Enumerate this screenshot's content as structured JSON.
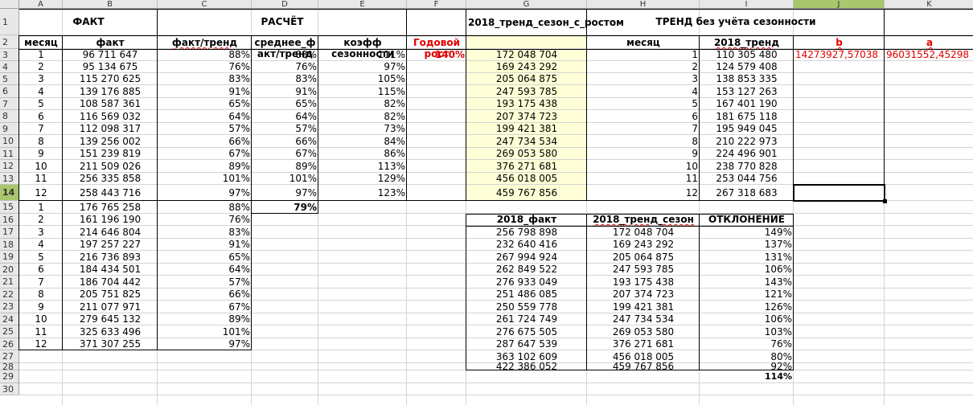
{
  "columns": [
    "A",
    "B",
    "C",
    "D",
    "E",
    "F",
    "G",
    "H",
    "I",
    "J",
    "K"
  ],
  "rows": [
    "1",
    "2",
    "3",
    "4",
    "5",
    "6",
    "7",
    "8",
    "9",
    "10",
    "11",
    "12",
    "13",
    "14",
    "15",
    "16",
    "17",
    "18",
    "19",
    "20",
    "21",
    "22",
    "23",
    "24",
    "25",
    "26",
    "27",
    "28",
    "29",
    "30"
  ],
  "headers": {
    "fact_group": "ФАКТ",
    "calc_group": "РАСЧЁТ",
    "trend_group": "ТРЕНД без учёта сезонности",
    "month": "месяц",
    "fact": "факт",
    "fact_trend": "факт/тренд",
    "avg_fact_trend": "среднее_факт/тренд",
    "season_coef": "коэфф сезонности",
    "annual_growth": "Годовой рост",
    "trend_season_growth": "2018_тренд_сезон_с_ростом",
    "month_h": "месяц",
    "trend_2018": "2018_тренд",
    "b_label": "b",
    "a_label": "a",
    "fact_2018": "2018_факт",
    "trend_season_2018": "2018_тренд_сезон",
    "deviation": "ОТКЛОНЕНИЕ"
  },
  "growth_value": "140%",
  "avg_total": "79%",
  "b_value": "14273927,57038",
  "a_value": "96031552,45298",
  "deviation_total": "114%",
  "fact_rows": [
    {
      "month": "1",
      "fact": "96 711 647",
      "ft": "88%"
    },
    {
      "month": "2",
      "fact": "95 134 675",
      "ft": "76%"
    },
    {
      "month": "3",
      "fact": "115 270 625",
      "ft": "83%"
    },
    {
      "month": "4",
      "fact": "139 176 885",
      "ft": "91%"
    },
    {
      "month": "5",
      "fact": "108 587 361",
      "ft": "65%"
    },
    {
      "month": "6",
      "fact": "116 569 032",
      "ft": "64%"
    },
    {
      "month": "7",
      "fact": "112 098 317",
      "ft": "57%"
    },
    {
      "month": "8",
      "fact": "139 256 002",
      "ft": "66%"
    },
    {
      "month": "9",
      "fact": "151 239 819",
      "ft": "67%"
    },
    {
      "month": "10",
      "fact": "211 509 026",
      "ft": "89%"
    },
    {
      "month": "11",
      "fact": "256 335 858",
      "ft": "101%"
    },
    {
      "month": "12",
      "fact": "258 443 716",
      "ft": "97%"
    },
    {
      "month": "1",
      "fact": "176 765 258",
      "ft": "88%"
    },
    {
      "month": "2",
      "fact": "161 196 190",
      "ft": "76%"
    },
    {
      "month": "3",
      "fact": "214 646 804",
      "ft": "83%"
    },
    {
      "month": "4",
      "fact": "197 257 227",
      "ft": "91%"
    },
    {
      "month": "5",
      "fact": "216 736 893",
      "ft": "65%"
    },
    {
      "month": "6",
      "fact": "184 434 501",
      "ft": "64%"
    },
    {
      "month": "7",
      "fact": "186 704 442",
      "ft": "57%"
    },
    {
      "month": "8",
      "fact": "205 751 825",
      "ft": "66%"
    },
    {
      "month": "9",
      "fact": "211 077 971",
      "ft": "67%"
    },
    {
      "month": "10",
      "fact": "279 645 132",
      "ft": "89%"
    },
    {
      "month": "11",
      "fact": "325 633 496",
      "ft": "101%"
    },
    {
      "month": "12",
      "fact": "371 307 255",
      "ft": "97%"
    }
  ],
  "calc_rows": [
    {
      "avg": "88%",
      "coef": "111%"
    },
    {
      "avg": "76%",
      "coef": "97%"
    },
    {
      "avg": "83%",
      "coef": "105%"
    },
    {
      "avg": "91%",
      "coef": "115%"
    },
    {
      "avg": "65%",
      "coef": "82%"
    },
    {
      "avg": "64%",
      "coef": "82%"
    },
    {
      "avg": "57%",
      "coef": "73%"
    },
    {
      "avg": "66%",
      "coef": "84%"
    },
    {
      "avg": "67%",
      "coef": "86%"
    },
    {
      "avg": "89%",
      "coef": "113%"
    },
    {
      "avg": "101%",
      "coef": "129%"
    },
    {
      "avg": "97%",
      "coef": "123%"
    }
  ],
  "season_growth": [
    "172 048 704",
    "169 243 292",
    "205 064 875",
    "247 593 785",
    "193 175 438",
    "207 374 723",
    "199 421 381",
    "247 734 534",
    "269 053 580",
    "376 271 681",
    "456 018 005",
    "459 767 856"
  ],
  "trend_rows": [
    {
      "month": "1",
      "trend": "110 305 480"
    },
    {
      "month": "2",
      "trend": "124 579 408"
    },
    {
      "month": "3",
      "trend": "138 853 335"
    },
    {
      "month": "4",
      "trend": "153 127 263"
    },
    {
      "month": "5",
      "trend": "167 401 190"
    },
    {
      "month": "6",
      "trend": "181 675 118"
    },
    {
      "month": "7",
      "trend": "195 949 045"
    },
    {
      "month": "8",
      "trend": "210 222 973"
    },
    {
      "month": "9",
      "trend": "224 496 901"
    },
    {
      "month": "10",
      "trend": "238 770 828"
    },
    {
      "month": "11",
      "trend": "253 044 756"
    },
    {
      "month": "12",
      "trend": "267 318 683"
    }
  ],
  "deviation_rows": [
    {
      "fact": "256 798 898",
      "trend": "172 048 704",
      "dev": "149%"
    },
    {
      "fact": "232 640 416",
      "trend": "169 243 292",
      "dev": "137%"
    },
    {
      "fact": "267 994 924",
      "trend": "205 064 875",
      "dev": "131%"
    },
    {
      "fact": "262 849 522",
      "trend": "247 593 785",
      "dev": "106%"
    },
    {
      "fact": "276 933 049",
      "trend": "193 175 438",
      "dev": "143%"
    },
    {
      "fact": "251 486 085",
      "trend": "207 374 723",
      "dev": "121%"
    },
    {
      "fact": "250 559 778",
      "trend": "199 421 381",
      "dev": "126%"
    },
    {
      "fact": "261 724 749",
      "trend": "247 734 534",
      "dev": "106%"
    },
    {
      "fact": "276 675 505",
      "trend": "269 053 580",
      "dev": "103%"
    },
    {
      "fact": "287 647 539",
      "trend": "376 271 681",
      "dev": "76%"
    },
    {
      "fact": "363 102 609",
      "trend": "456 018 005",
      "dev": "80%"
    },
    {
      "fact": "422 386 052",
      "trend": "459 767 856",
      "dev": "92%"
    }
  ]
}
